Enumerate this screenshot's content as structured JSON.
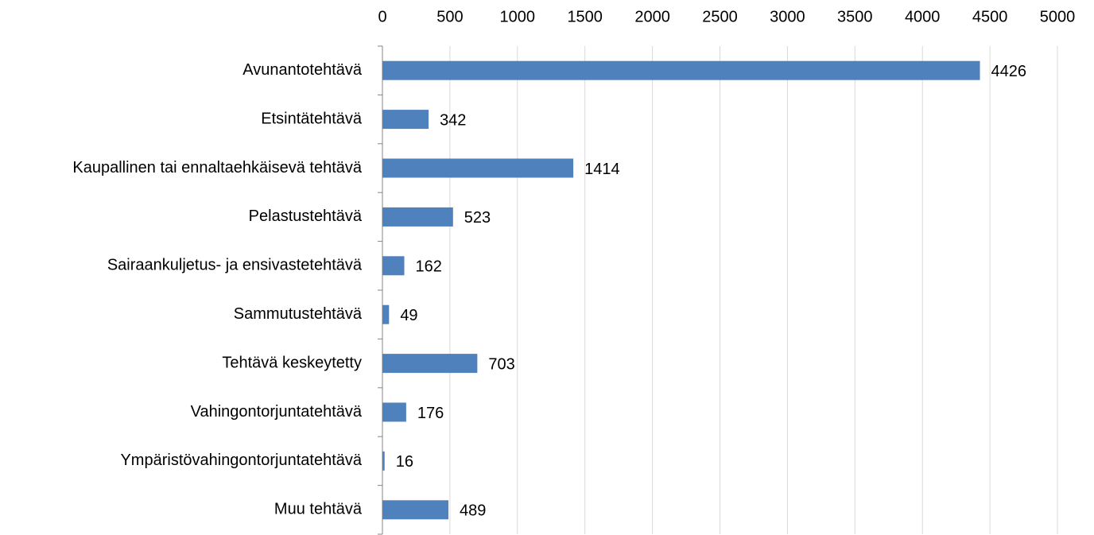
{
  "chart_data": {
    "type": "bar",
    "orientation": "horizontal",
    "categories": [
      "Avunantotehtävä",
      "Etsintätehtävä",
      "Kaupallinen tai ennaltaehkäisevä tehtävä",
      "Pelastustehtävä",
      "Sairaankuljetus- ja ensivastetehtävä",
      "Sammutustehtävä",
      "Tehtävä keskeytetty",
      "Vahingontorjuntatehtävä",
      "Ympäristövahingontorjuntatehtävä",
      "Muu tehtävä"
    ],
    "values": [
      4426,
      342,
      1414,
      523,
      162,
      49,
      703,
      176,
      16,
      489
    ],
    "color": "#4f81bd",
    "xlim": [
      0,
      5000
    ],
    "xticks": [
      0,
      500,
      1000,
      1500,
      2000,
      2500,
      3000,
      3500,
      4000,
      4500,
      5000
    ],
    "grid": true
  }
}
